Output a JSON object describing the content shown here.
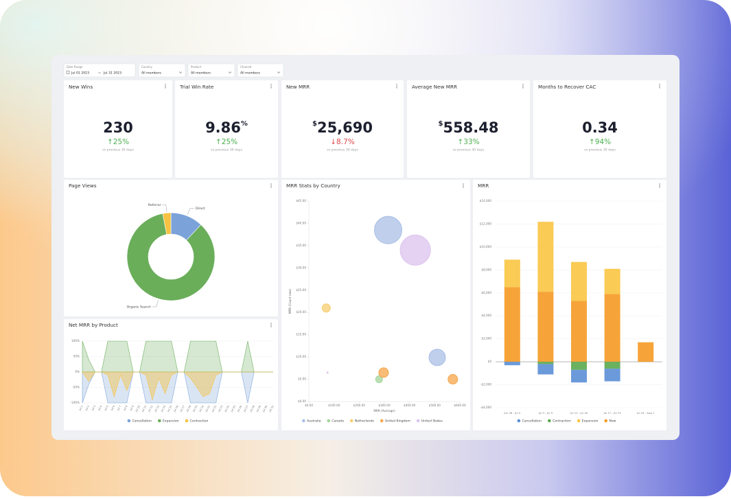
{
  "filters": [
    {
      "label": "Date Range",
      "value": "Jul 01 2023",
      "value2": "Jul 31 2023"
    },
    {
      "label": "Country",
      "value": "All members"
    },
    {
      "label": "Product",
      "value": "All members"
    },
    {
      "label": "Channel",
      "value": "All members"
    }
  ],
  "kpis": [
    {
      "title": "New Wins",
      "value": "230",
      "change": "↑25%",
      "note": "vs previous 30 days",
      "color": "#4caf50"
    },
    {
      "title": "Trial Win Rate",
      "value": "9.86",
      "suffix": "%",
      "change": "↑25%",
      "note": "vs previous 30 days",
      "color": "#4caf50"
    },
    {
      "title": "New MRR",
      "prefix": "$",
      "value": "25,690",
      "change": "↓8.7%",
      "note": "vs previous 30 days",
      "color": "#e0484d"
    },
    {
      "title": "Average New MRR",
      "prefix": "$",
      "value": "558.48",
      "change": "↑33%",
      "note": "vs previous 30 days",
      "color": "#4caf50"
    },
    {
      "title": "Months to Recover CAC",
      "value": "0.34",
      "change": "↑94%",
      "note": "vs previous 30 days",
      "color": "#4caf50"
    }
  ],
  "chart_data": [
    {
      "type": "donut",
      "title": "Page Views",
      "categories": [
        "Direct",
        "Organic Search",
        "Referral"
      ],
      "values": [
        12,
        85,
        3
      ],
      "colors": [
        "#7ba3d9",
        "#6aae5a",
        "#f5c242"
      ]
    },
    {
      "type": "area",
      "title": "Net MRR by Product",
      "categories": [
        "Jul 1",
        "Jul 2",
        "Jul 3",
        "Jul 4",
        "Jul 5",
        "Jul 6",
        "Jul 7",
        "Jul 8",
        "Jul 9",
        "Jul 10",
        "Jul 11",
        "Jul 12",
        "Jul 13",
        "Jul 14",
        "Jul 15",
        "Jul 16",
        "Jul 17",
        "Jul 18",
        "Jul 19",
        "Jul 20",
        "Jul 21",
        "Jul 22",
        "Jul 23",
        "Jul 24",
        "Jul 25",
        "Jul 26",
        "Jul 27",
        "Jul 28",
        "Jul 29",
        "Jul 30",
        "Jul 31"
      ],
      "ylim": [
        -100,
        100
      ],
      "yticks": [
        {
          "value": 100,
          "label": "100%"
        },
        {
          "value": 50,
          "label": "50%"
        },
        {
          "value": 0,
          "label": "0%"
        },
        {
          "value": -50,
          "label": "-50%"
        },
        {
          "value": -100,
          "label": "-100%"
        }
      ],
      "series": [
        {
          "name": "Cancellation",
          "color": "#7ba3d9",
          "values": [
            -100,
            -40,
            0,
            0,
            -100,
            -100,
            -100,
            -100,
            0,
            0,
            -100,
            -100,
            -100,
            -100,
            -100,
            0,
            0,
            -100,
            -100,
            -100,
            -100,
            -100,
            0,
            0,
            0,
            0,
            -100,
            0,
            0,
            0,
            0
          ]
        },
        {
          "name": "Expansion",
          "color": "#6aae5a",
          "values": [
            100,
            40,
            0,
            0,
            100,
            100,
            100,
            100,
            0,
            0,
            100,
            100,
            100,
            100,
            100,
            0,
            0,
            100,
            100,
            100,
            100,
            100,
            0,
            0,
            0,
            0,
            100,
            0,
            0,
            0,
            0
          ]
        },
        {
          "name": "Contraction",
          "color": "#f5c242",
          "values": [
            0,
            -30,
            0,
            0,
            -10,
            -80,
            -10,
            -60,
            0,
            0,
            -10,
            -90,
            -20,
            -70,
            -10,
            0,
            0,
            -20,
            -50,
            -80,
            -70,
            -10,
            0,
            0,
            0,
            0,
            0,
            0,
            0,
            0,
            0
          ]
        }
      ]
    },
    {
      "type": "bubble",
      "title": "MRR Stats by Country",
      "x_label": "MRR (Average)",
      "y_label": "MRR (Count new)",
      "xlim": [
        0,
        600
      ],
      "xticks": [
        {
          "value": 0,
          "label": "$0.00"
        },
        {
          "value": 100,
          "label": "$100.00"
        },
        {
          "value": 200,
          "label": "$200.00"
        },
        {
          "value": 300,
          "label": "$300.00"
        },
        {
          "value": 400,
          "label": "$400.00"
        },
        {
          "value": 500,
          "label": "$500.00"
        },
        {
          "value": 600,
          "label": "$600.00"
        }
      ],
      "ylim": [
        0,
        45
      ],
      "yticks": [
        {
          "value": 0,
          "label": "$0.00"
        },
        {
          "value": 5,
          "label": "$5.00"
        },
        {
          "value": 10,
          "label": "$10.00"
        },
        {
          "value": 15,
          "label": "$15.00"
        },
        {
          "value": 20,
          "label": "$20.00"
        },
        {
          "value": 25,
          "label": "$25.00"
        },
        {
          "value": 30,
          "label": "$30.00"
        },
        {
          "value": 35,
          "label": "$35.00"
        },
        {
          "value": 40,
          "label": "$40.00"
        },
        {
          "value": 45,
          "label": "$45.00"
        }
      ],
      "series": [
        {
          "name": "Australia",
          "color": "#a9bfe6",
          "x": [
            315,
            510
          ],
          "values": [
            38.5,
            9.9
          ],
          "sizes": [
            20,
            12
          ]
        },
        {
          "name": "Canada",
          "color": "#a4d49a",
          "x": [
            279
          ],
          "values": [
            5
          ],
          "sizes": [
            5
          ]
        },
        {
          "name": "Netherlands",
          "color": "#f7cd70",
          "x": [
            69
          ],
          "values": [
            21
          ],
          "sizes": [
            6
          ]
        },
        {
          "name": "United Kingdom",
          "color": "#f5a64a",
          "x": [
            297,
            572
          ],
          "values": [
            6.5,
            5
          ],
          "sizes": [
            7,
            7
          ]
        },
        {
          "name": "United States",
          "color": "#dcc3ee",
          "x": [
            423,
            74
          ],
          "values": [
            34,
            6.5
          ],
          "sizes": [
            22,
            1
          ]
        }
      ]
    },
    {
      "type": "stacked_bar",
      "title": "MRR",
      "categories": [
        "Jun 26 - Jul 2",
        "Jul 3 - Jul 9",
        "Jul 10 - Jul 16",
        "Jul 17 - Jul 23",
        "Jul 24 - Aug 1"
      ],
      "ylim": [
        -4000,
        14000
      ],
      "yticks": [
        {
          "value": 14000,
          "label": "$14,000"
        },
        {
          "value": 12000,
          "label": "$12,000"
        },
        {
          "value": 10000,
          "label": "$10,000"
        },
        {
          "value": 8000,
          "label": "$8,000"
        },
        {
          "value": 6000,
          "label": "$6,000"
        },
        {
          "value": 4000,
          "label": "$4,000"
        },
        {
          "value": 2000,
          "label": "$2,000"
        },
        {
          "value": 0,
          "label": "$0"
        },
        {
          "value": -2000,
          "label": "-$2,000"
        },
        {
          "value": -4000,
          "label": "-$4,000"
        }
      ],
      "series": [
        {
          "name": "Cancellation",
          "color": "#5b8fd6",
          "values": [
            -300,
            -900,
            -1100,
            -1100,
            0
          ]
        },
        {
          "name": "Contraction",
          "color": "#5aa84f",
          "values": [
            0,
            -200,
            -700,
            -600,
            0
          ]
        },
        {
          "name": "Expansion",
          "color": "#f9c543",
          "values": [
            2400,
            6100,
            3400,
            2200,
            0
          ]
        },
        {
          "name": "New",
          "color": "#f59a23",
          "values": [
            6500,
            6100,
            5300,
            5900,
            1700
          ]
        }
      ]
    }
  ]
}
